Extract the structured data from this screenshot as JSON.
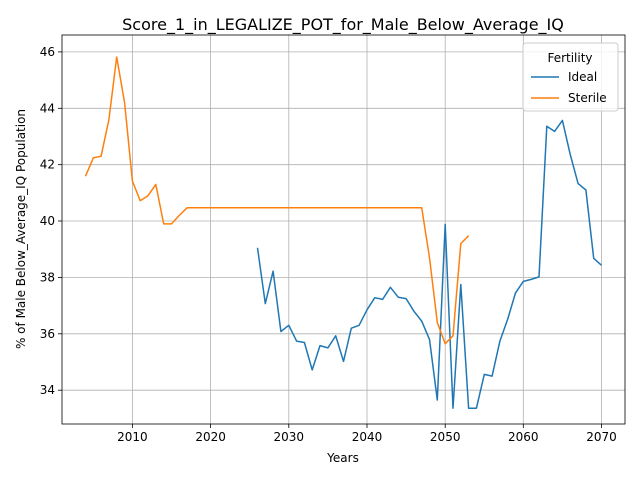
{
  "chart_data": {
    "type": "line",
    "title": "Score_1_in_LEGALIZE_POT_for_Male_Below_Average_IQ",
    "xlabel": "Years",
    "ylabel": "% of Male Below_Average_IQ Population",
    "xlim": [
      2001,
      2073
    ],
    "ylim": [
      32.8,
      46.6
    ],
    "xticks": [
      2010,
      2020,
      2030,
      2040,
      2050,
      2060,
      2070
    ],
    "yticks": [
      34,
      36,
      38,
      40,
      42,
      44,
      46
    ],
    "grid": true,
    "legend": {
      "title": "Fertility",
      "placement": "upper right"
    },
    "series": [
      {
        "name": "Ideal",
        "color": "#1f77b4",
        "points": [
          [
            2026,
            39.05
          ],
          [
            2027,
            37.07
          ],
          [
            2028,
            38.22
          ],
          [
            2029,
            36.08
          ],
          [
            2030,
            36.3
          ],
          [
            2031,
            35.74
          ],
          [
            2032,
            35.69
          ],
          [
            2033,
            34.72
          ],
          [
            2034,
            35.58
          ],
          [
            2035,
            35.5
          ],
          [
            2036,
            35.93
          ],
          [
            2037,
            35.02
          ],
          [
            2038,
            36.2
          ],
          [
            2039,
            36.3
          ],
          [
            2040,
            36.85
          ],
          [
            2041,
            37.28
          ],
          [
            2042,
            37.22
          ],
          [
            2043,
            37.65
          ],
          [
            2044,
            37.3
          ],
          [
            2045,
            37.25
          ],
          [
            2046,
            36.8
          ],
          [
            2047,
            36.45
          ],
          [
            2048,
            35.8
          ],
          [
            2049,
            33.65
          ],
          [
            2050,
            39.88
          ],
          [
            2051,
            33.36
          ],
          [
            2052,
            37.75
          ],
          [
            2053,
            33.36
          ],
          [
            2054,
            33.36
          ],
          [
            2055,
            34.56
          ],
          [
            2056,
            34.5
          ],
          [
            2057,
            35.74
          ],
          [
            2058,
            36.52
          ],
          [
            2059,
            37.45
          ],
          [
            2060,
            37.86
          ],
          [
            2061,
            37.93
          ],
          [
            2062,
            38.02
          ],
          [
            2063,
            43.36
          ],
          [
            2064,
            43.18
          ],
          [
            2065,
            43.57
          ],
          [
            2066,
            42.35
          ],
          [
            2067,
            41.33
          ],
          [
            2068,
            41.1
          ],
          [
            2069,
            38.68
          ],
          [
            2070,
            38.43
          ]
        ]
      },
      {
        "name": "Sterile",
        "color": "#ff7f0e",
        "points": [
          [
            2004,
            41.59
          ],
          [
            2005,
            42.24
          ],
          [
            2006,
            42.3
          ],
          [
            2007,
            43.6
          ],
          [
            2008,
            45.82
          ],
          [
            2009,
            44.2
          ],
          [
            2010,
            41.42
          ],
          [
            2011,
            40.72
          ],
          [
            2012,
            40.9
          ],
          [
            2013,
            41.3
          ],
          [
            2014,
            39.9
          ],
          [
            2015,
            39.9
          ],
          [
            2016,
            40.2
          ],
          [
            2017,
            40.47
          ],
          [
            2018,
            40.47
          ],
          [
            2020,
            40.47
          ],
          [
            2025,
            40.47
          ],
          [
            2030,
            40.47
          ],
          [
            2035,
            40.47
          ],
          [
            2040,
            40.47
          ],
          [
            2045,
            40.47
          ],
          [
            2047,
            40.47
          ],
          [
            2048,
            38.7
          ],
          [
            2049,
            36.4
          ],
          [
            2050,
            35.65
          ],
          [
            2051,
            35.93
          ],
          [
            2052,
            39.2
          ],
          [
            2053,
            39.48
          ]
        ]
      }
    ]
  }
}
